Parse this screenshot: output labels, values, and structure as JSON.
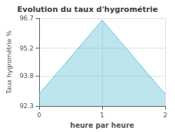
{
  "chart_data": {
    "type": "area",
    "title": "Evolution du taux d'hygrométrie",
    "xlabel": "heure par heure",
    "ylabel": "Taux hygrométrie %",
    "x": [
      0,
      1,
      2
    ],
    "values": [
      92.9,
      96.6,
      92.9
    ],
    "xlim": [
      0,
      2
    ],
    "ylim": [
      92.3,
      96.7
    ],
    "xticks": [
      0,
      1,
      2
    ],
    "yticks": [
      92.3,
      93.8,
      95.2,
      96.7
    ],
    "color": "#5bbdd4",
    "line_style": "dotted",
    "grid": true
  }
}
